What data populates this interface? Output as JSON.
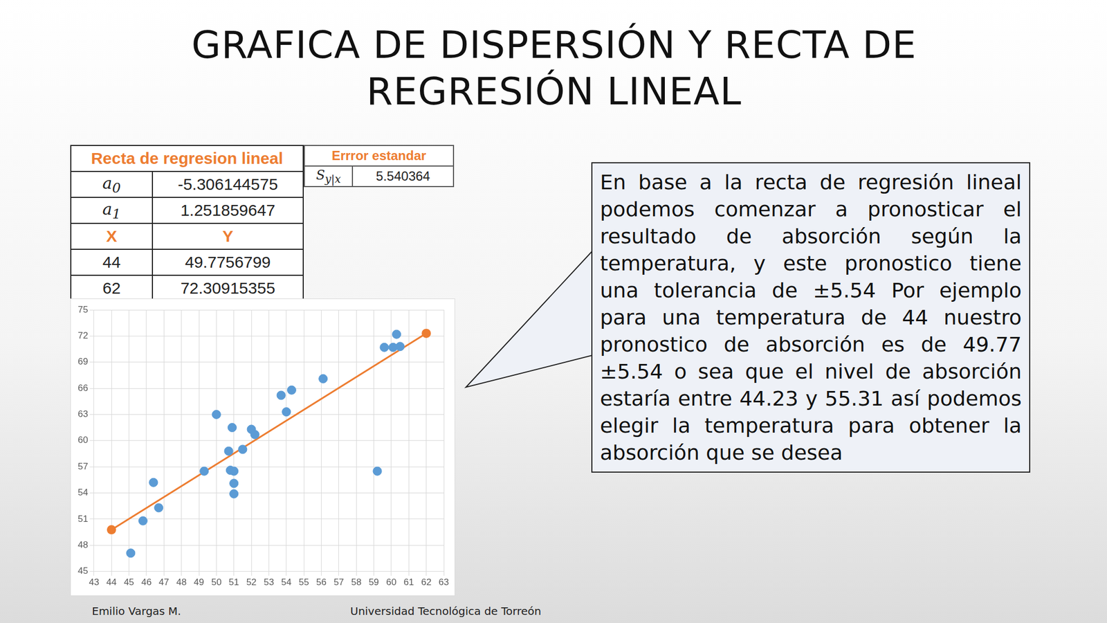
{
  "title": [
    "GRAFICA DE DISPERSIÓN Y RECTA DE",
    "REGRESIÓN LINEAL"
  ],
  "regression_table": {
    "title": "Recta de regresion lineal",
    "coefficients": [
      {
        "symbol": "a",
        "subscript": "0",
        "value": "-5.306144575"
      },
      {
        "symbol": "a",
        "subscript": "1",
        "value": "1.251859647"
      }
    ],
    "header": [
      "X",
      "Y"
    ],
    "rows": [
      [
        "44",
        "49.7756799"
      ],
      [
        "62",
        "72.30915355"
      ]
    ]
  },
  "error_table": {
    "title": "Errror estandar",
    "symbol": "S",
    "subscript": "y|x",
    "value": "5.540364"
  },
  "callout": "En base a la recta de regresión lineal podemos comenzar a pronosticar el resultado de absorción según la temperatura, y este pronostico tiene una tolerancia de ±5.54 Por ejemplo para una temperatura de 44 nuestro pronostico de absorción es de 49.77 ±5.54 o sea que el nivel de absorción estaría entre 44.23 y 55.31 así podemos elegir la temperatura para obtener la absorción que se desea",
  "footer": {
    "left": "Emilio Vargas M.",
    "right": "Universidad Tecnológica de Torreón"
  },
  "chart_data": {
    "type": "scatter",
    "series": [
      {
        "type": "scatter",
        "color": "#5b9bd5",
        "marker": "circle",
        "x": [
          45.1,
          45.8,
          46.4,
          46.7,
          49.3,
          50.0,
          50.7,
          50.9,
          50.8,
          51.0,
          51.0,
          51.0,
          51.5,
          52.0,
          52.2,
          53.7,
          54.0,
          54.3,
          56.1,
          59.2,
          59.6,
          60.1,
          60.3,
          60.5
        ],
        "values": [
          47.1,
          50.8,
          55.2,
          52.3,
          56.5,
          63.0,
          58.8,
          61.5,
          56.6,
          56.5,
          55.1,
          53.9,
          59.0,
          61.3,
          60.7,
          65.2,
          63.3,
          65.8,
          67.1,
          56.5,
          70.7,
          70.7,
          72.2,
          70.8
        ]
      },
      {
        "type": "line",
        "color": "#ed7d31",
        "marker": "circle",
        "line_style": "solid",
        "x": [
          44,
          62
        ],
        "values": [
          49.7756799,
          72.30915355
        ]
      }
    ],
    "xlim": [
      43,
      63
    ],
    "xticks": [
      43,
      44,
      45,
      46,
      47,
      48,
      49,
      50,
      51,
      52,
      53,
      54,
      55,
      56,
      57,
      58,
      59,
      60,
      61,
      62,
      63
    ],
    "ylim": [
      45,
      75
    ],
    "yticks": [
      45,
      48,
      51,
      54,
      57,
      60,
      63,
      66,
      69,
      72,
      75
    ],
    "grid": true
  }
}
